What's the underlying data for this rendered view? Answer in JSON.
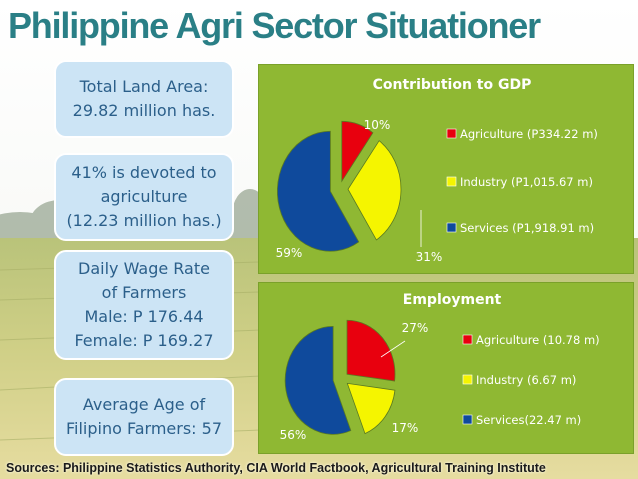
{
  "page": {
    "title": "Philippine Agri Sector Situationer",
    "sources": "Sources: Philippine Statistics Authority, CIA World Factbook, Agricultural Training Institute"
  },
  "info_boxes": [
    {
      "lines": [
        "Total Land Area:",
        "29.82 million has."
      ]
    },
    {
      "lines": [
        "41% is devoted to",
        "agriculture",
        "(12.23 million has.)"
      ]
    },
    {
      "lines": [
        "Daily Wage Rate",
        "of Farmers",
        "Male: P 176.44",
        "Female: P 169.27"
      ]
    },
    {
      "lines": [
        "Average Age of",
        "Filipino Farmers: 57"
      ]
    }
  ],
  "colors": {
    "agriculture": "#e8000e",
    "industry": "#f5f500",
    "services": "#0f4a9c",
    "panel": "#8fb833",
    "title": "#2a7f86"
  },
  "chart_data": [
    {
      "type": "pie",
      "title": "Contribution to GDP",
      "categories": [
        "Agriculture (P334.22 m)",
        "Industry (P1,015.67 m)",
        "Services (P1,918.91 m)"
      ],
      "values": [
        10,
        31,
        59
      ],
      "data_labels": [
        "10%",
        "31%",
        "59%"
      ],
      "legend": "right",
      "exploded": true
    },
    {
      "type": "pie",
      "title": "Employment",
      "categories": [
        "Agriculture (10.78 m)",
        "Industry (6.67 m)",
        "Services(22.47 m)"
      ],
      "values": [
        27,
        17,
        56
      ],
      "data_labels": [
        "27%",
        "17%",
        "56%"
      ],
      "legend": "right",
      "exploded": true
    }
  ]
}
